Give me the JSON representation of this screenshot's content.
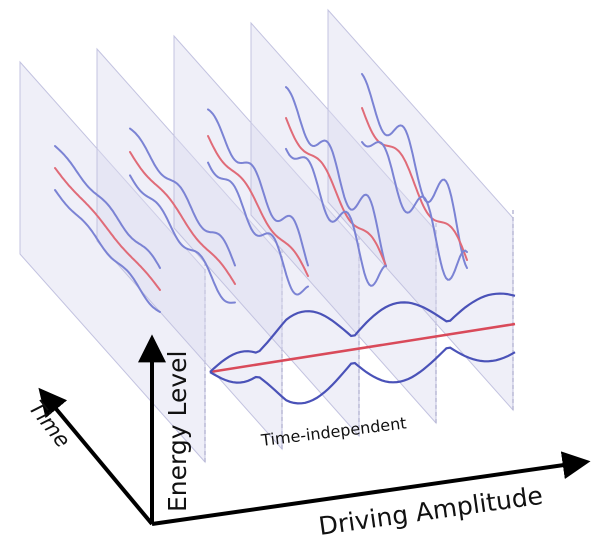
{
  "labels": {
    "time_axis": "Time",
    "energy_axis": "Energy Level",
    "amplitude_axis": "Driving Amplitude",
    "bottom_curve": "Time-independent"
  },
  "colors": {
    "background": "#ffffff",
    "panel_fill": "#dcdcf0",
    "panel_edge": "#c3c3e0",
    "blue_curve": "#7b83d4",
    "red_curve": "#e06b78",
    "dark_blue_curve": "#4a52b8",
    "dark_red_curve": "#d94a5a",
    "axis": "#000000"
  },
  "icons": {
    "time_arrow": "arrow-up-left-icon",
    "energy_arrow": "arrow-up-icon",
    "amplitude_arrow": "arrow-right-icon"
  }
}
